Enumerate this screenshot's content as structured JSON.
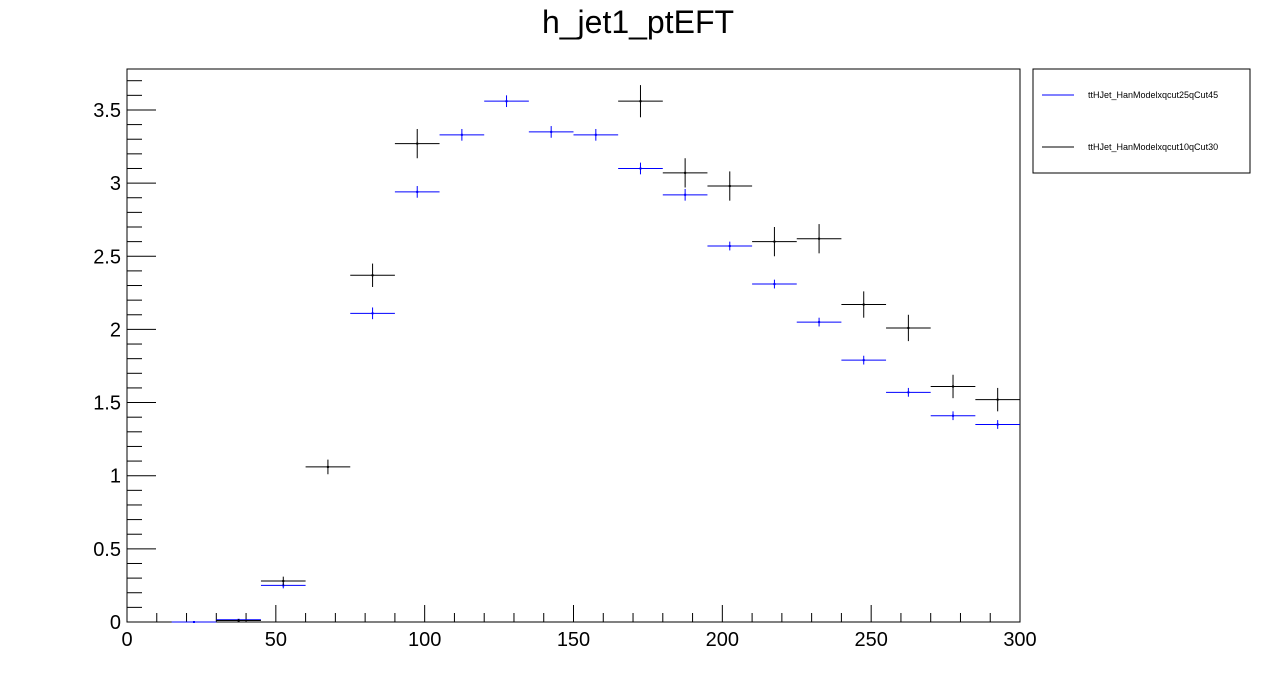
{
  "chart_data": {
    "type": "scatter",
    "title": "h_jet1_ptEFT",
    "xlabel": "",
    "ylabel": "",
    "xlim": [
      0,
      300
    ],
    "ylim": [
      0,
      3.78
    ],
    "x_ticks": [
      0,
      50,
      100,
      150,
      200,
      250,
      300
    ],
    "x_tick_labels": [
      "0",
      "50",
      "100",
      "150",
      "200",
      "250",
      "300"
    ],
    "y_ticks": [
      0,
      0.5,
      1,
      1.5,
      2,
      2.5,
      3,
      3.5
    ],
    "y_tick_labels": [
      "0",
      "0.5",
      "1",
      "1.5",
      "2",
      "2.5",
      "3",
      "3.5"
    ],
    "bin_width": 15,
    "grid": false,
    "legend_position": "outside-right",
    "series": [
      {
        "name": "ttHJet_HanModelxqcut25qCut45",
        "color": "#0000ff",
        "x": [
          22.5,
          37.5,
          52.5,
          82.5,
          97.5,
          112.5,
          127.5,
          142.5,
          157.5,
          172.5,
          187.5,
          202.5,
          217.5,
          232.5,
          247.5,
          262.5,
          277.5,
          292.5
        ],
        "y": [
          0.0,
          0.015,
          0.25,
          2.11,
          2.94,
          3.33,
          3.56,
          3.35,
          3.33,
          3.1,
          2.92,
          2.57,
          2.31,
          2.05,
          1.79,
          1.57,
          1.41,
          1.35
        ],
        "yerr": [
          0.0,
          0.005,
          0.02,
          0.04,
          0.04,
          0.04,
          0.04,
          0.04,
          0.04,
          0.04,
          0.04,
          0.03,
          0.03,
          0.03,
          0.03,
          0.03,
          0.03,
          0.03
        ]
      },
      {
        "name": "ttHJet_HanModelxqcut10qCut30",
        "color": "#000000",
        "x": [
          37.5,
          52.5,
          67.5,
          82.5,
          97.5,
          172.5,
          187.5,
          202.5,
          217.5,
          232.5,
          247.5,
          262.5,
          277.5,
          292.5
        ],
        "y": [
          0.01,
          0.28,
          1.06,
          2.37,
          3.27,
          3.56,
          3.07,
          2.98,
          2.6,
          2.62,
          2.17,
          2.01,
          1.61,
          1.52
        ],
        "yerr": [
          0.01,
          0.03,
          0.05,
          0.08,
          0.1,
          0.11,
          0.1,
          0.1,
          0.1,
          0.1,
          0.09,
          0.09,
          0.08,
          0.08
        ]
      }
    ]
  }
}
